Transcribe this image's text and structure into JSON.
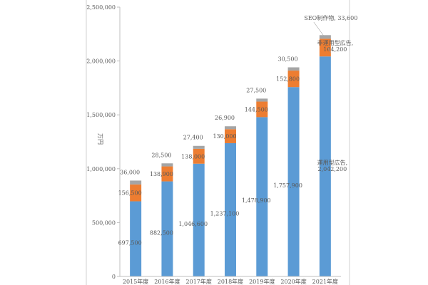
{
  "chart_data": {
    "type": "bar",
    "stacked": true,
    "categories": [
      "2015年度",
      "2016年度",
      "2017年度",
      "2018年度",
      "2019年度",
      "2020年度",
      "2021年度"
    ],
    "series": [
      {
        "name": "運用型広告",
        "values": [
          697500,
          882500,
          1046600,
          1237100,
          1478900,
          1757900,
          2042200
        ],
        "color": "#5B9BD5"
      },
      {
        "name": "非運用型広告",
        "values": [
          156500,
          138900,
          138000,
          130000,
          144500,
          152800,
          164200
        ],
        "color": "#ED7D31"
      },
      {
        "name": "SEO制作物",
        "values": [
          36000,
          28500,
          27400,
          26900,
          27500,
          30500,
          33600
        ],
        "color": "#A5A5A5"
      }
    ],
    "data_labels": {
      "series_0": [
        "697,500",
        "882,500",
        "1,046,600",
        "1,237,100",
        "1,478,900",
        "1,757,900",
        "運用型広告, 2,042,200"
      ],
      "series_1": [
        "156,500",
        "138,900",
        "138,000",
        "130,000",
        "144,500",
        "152,800",
        "非運用型広告, 164,200"
      ],
      "series_2": [
        "36,000",
        "28,500",
        "27,400",
        "26,900",
        "27,500",
        "30,500",
        "SEO制作物, 33,600"
      ]
    },
    "ylabel": "万円",
    "ylim": [
      0,
      2500000
    ],
    "yticks": [
      0,
      500000,
      1000000,
      1500000,
      2000000,
      2500000
    ],
    "ytick_labels": [
      "0",
      "500,000",
      "1,000,000",
      "1,500,000",
      "2,000,000",
      "2,500,000"
    ],
    "grid": false,
    "legend": "none"
  }
}
